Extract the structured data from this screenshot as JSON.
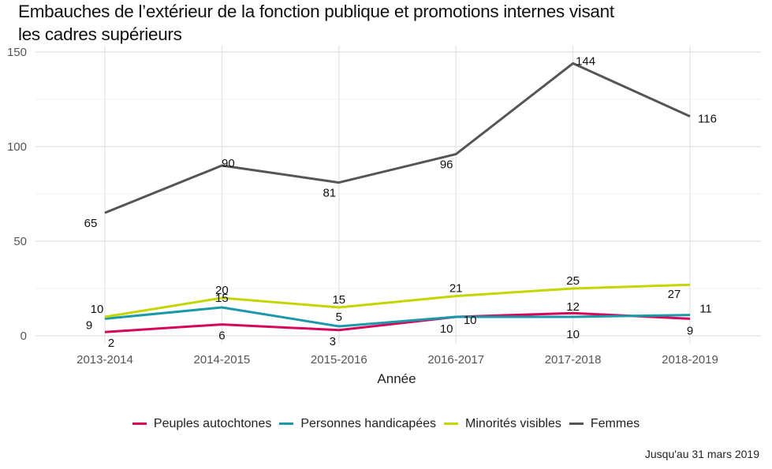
{
  "chart_data": {
    "type": "line",
    "title": "Embauches de l’extérieur de la fonction publique et promotions internes visant les cadres supérieurs",
    "title_lines": [
      "Embauches de l’extérieur de la fonction publique et promotions internes visant",
      "les cadres supérieurs"
    ],
    "xlabel": "Année",
    "ylabel": "",
    "categories": [
      "2013-2014",
      "2014-2015",
      "2015-2016",
      "2016-2017",
      "2017-2018",
      "2018-2019"
    ],
    "yticks": [
      0,
      50,
      100,
      150
    ],
    "ylim": [
      0,
      150
    ],
    "grid": true,
    "legend_position": "bottom",
    "series": [
      {
        "name": "Peuples autochtones",
        "color": "#d6085a",
        "values": [
          2,
          6,
          3,
          10,
          12,
          9
        ]
      },
      {
        "name": "Personnes handicapées",
        "color": "#1a9aa8",
        "values": [
          9,
          15,
          5,
          10,
          10,
          11
        ]
      },
      {
        "name": "Minorités visibles",
        "color": "#c4d600",
        "values": [
          10,
          20,
          15,
          21,
          25,
          27
        ]
      },
      {
        "name": "Femmes",
        "color": "#555555",
        "values": [
          65,
          90,
          81,
          96,
          144,
          116
        ]
      }
    ],
    "caption": "Jusqu'au 31 mars 2019"
  }
}
